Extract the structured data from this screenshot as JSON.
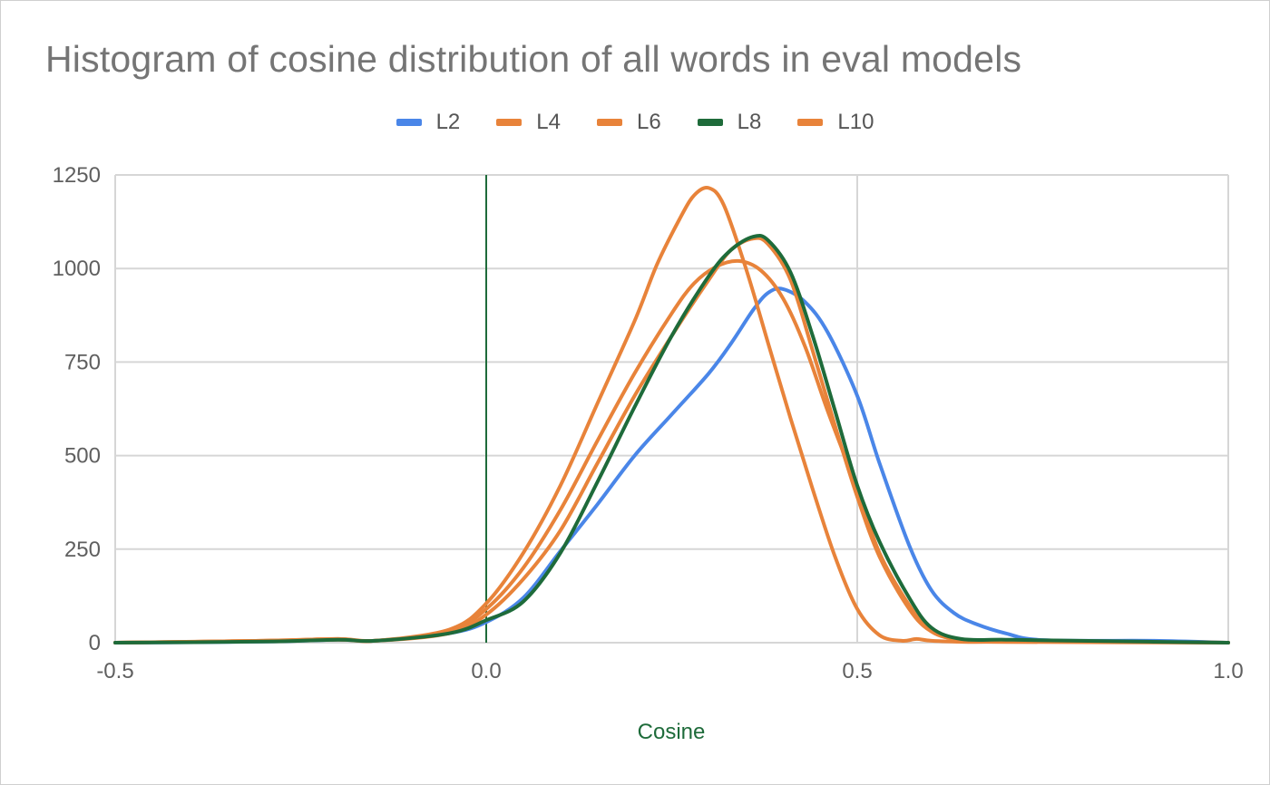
{
  "chart_data": {
    "type": "line",
    "title": "Histogram of cosine distribution of all words in eval models",
    "xlabel": "Cosine",
    "ylabel": "",
    "xlim": [
      -0.5,
      1.0
    ],
    "ylim": [
      0,
      1250
    ],
    "x_ticks": [
      -0.5,
      0.0,
      0.5,
      1.0
    ],
    "x_tick_labels": [
      "-0.5",
      "0.0",
      "0.5",
      "1.0"
    ],
    "y_ticks": [
      0,
      250,
      500,
      750,
      1000,
      1250
    ],
    "y_tick_labels": [
      "0",
      "250",
      "500",
      "750",
      "1000",
      "1250"
    ],
    "legend_position": "top-center",
    "grid": true,
    "series": [
      {
        "name": "L2",
        "color": "#4a86e8",
        "points": [
          [
            -0.5,
            0
          ],
          [
            -0.3,
            3
          ],
          [
            -0.2,
            8
          ],
          [
            -0.15,
            5
          ],
          [
            -0.05,
            25
          ],
          [
            0.0,
            55
          ],
          [
            0.05,
            120
          ],
          [
            0.1,
            245
          ],
          [
            0.15,
            370
          ],
          [
            0.2,
            500
          ],
          [
            0.25,
            610
          ],
          [
            0.3,
            720
          ],
          [
            0.33,
            800
          ],
          [
            0.36,
            890
          ],
          [
            0.38,
            935
          ],
          [
            0.4,
            945
          ],
          [
            0.43,
            910
          ],
          [
            0.46,
            830
          ],
          [
            0.5,
            660
          ],
          [
            0.53,
            480
          ],
          [
            0.57,
            260
          ],
          [
            0.6,
            140
          ],
          [
            0.63,
            80
          ],
          [
            0.66,
            50
          ],
          [
            0.7,
            25
          ],
          [
            0.75,
            7
          ],
          [
            0.9,
            5
          ],
          [
            1.0,
            0
          ]
        ]
      },
      {
        "name": "L4",
        "color": "#e8833a",
        "points": [
          [
            -0.5,
            0
          ],
          [
            -0.3,
            5
          ],
          [
            -0.2,
            10
          ],
          [
            -0.15,
            5
          ],
          [
            -0.05,
            25
          ],
          [
            0.0,
            75
          ],
          [
            0.05,
            170
          ],
          [
            0.1,
            300
          ],
          [
            0.15,
            480
          ],
          [
            0.2,
            660
          ],
          [
            0.25,
            820
          ],
          [
            0.3,
            970
          ],
          [
            0.33,
            1050
          ],
          [
            0.36,
            1080
          ],
          [
            0.38,
            1065
          ],
          [
            0.41,
            970
          ],
          [
            0.44,
            780
          ],
          [
            0.47,
            580
          ],
          [
            0.5,
            390
          ],
          [
            0.53,
            230
          ],
          [
            0.57,
            90
          ],
          [
            0.6,
            30
          ],
          [
            0.64,
            8
          ],
          [
            0.7,
            5
          ],
          [
            1.0,
            0
          ]
        ]
      },
      {
        "name": "L6",
        "color": "#e8833a",
        "points": [
          [
            -0.5,
            0
          ],
          [
            -0.3,
            5
          ],
          [
            -0.2,
            8
          ],
          [
            -0.15,
            5
          ],
          [
            -0.05,
            30
          ],
          [
            0.0,
            90
          ],
          [
            0.05,
            200
          ],
          [
            0.1,
            355
          ],
          [
            0.15,
            540
          ],
          [
            0.2,
            720
          ],
          [
            0.25,
            880
          ],
          [
            0.28,
            960
          ],
          [
            0.31,
            1005
          ],
          [
            0.34,
            1020
          ],
          [
            0.37,
            995
          ],
          [
            0.4,
            920
          ],
          [
            0.43,
            790
          ],
          [
            0.46,
            620
          ],
          [
            0.5,
            410
          ],
          [
            0.53,
            240
          ],
          [
            0.57,
            100
          ],
          [
            0.6,
            30
          ],
          [
            0.64,
            8
          ],
          [
            0.7,
            5
          ],
          [
            1.0,
            0
          ]
        ]
      },
      {
        "name": "L8",
        "color": "#1e6b3a",
        "points": [
          [
            -0.5,
            0
          ],
          [
            -0.3,
            3
          ],
          [
            -0.2,
            8
          ],
          [
            -0.15,
            5
          ],
          [
            -0.05,
            25
          ],
          [
            0.0,
            60
          ],
          [
            0.05,
            110
          ],
          [
            0.1,
            240
          ],
          [
            0.15,
            430
          ],
          [
            0.2,
            630
          ],
          [
            0.25,
            820
          ],
          [
            0.3,
            980
          ],
          [
            0.33,
            1050
          ],
          [
            0.36,
            1085
          ],
          [
            0.38,
            1075
          ],
          [
            0.41,
            990
          ],
          [
            0.44,
            820
          ],
          [
            0.47,
            620
          ],
          [
            0.5,
            420
          ],
          [
            0.53,
            270
          ],
          [
            0.57,
            120
          ],
          [
            0.6,
            40
          ],
          [
            0.64,
            10
          ],
          [
            0.7,
            8
          ],
          [
            0.8,
            5
          ],
          [
            1.0,
            0
          ]
        ]
      },
      {
        "name": "L10",
        "color": "#e8833a",
        "points": [
          [
            -0.5,
            0
          ],
          [
            -0.3,
            5
          ],
          [
            -0.2,
            10
          ],
          [
            -0.15,
            5
          ],
          [
            -0.05,
            35
          ],
          [
            0.0,
            105
          ],
          [
            0.05,
            240
          ],
          [
            0.1,
            420
          ],
          [
            0.15,
            640
          ],
          [
            0.2,
            860
          ],
          [
            0.23,
            1010
          ],
          [
            0.26,
            1130
          ],
          [
            0.28,
            1195
          ],
          [
            0.3,
            1215
          ],
          [
            0.32,
            1170
          ],
          [
            0.35,
            1000
          ],
          [
            0.38,
            800
          ],
          [
            0.41,
            600
          ],
          [
            0.44,
            410
          ],
          [
            0.47,
            230
          ],
          [
            0.5,
            90
          ],
          [
            0.53,
            20
          ],
          [
            0.56,
            5
          ],
          [
            0.58,
            10
          ],
          [
            0.6,
            5
          ],
          [
            0.65,
            2
          ],
          [
            0.7,
            2
          ],
          [
            1.0,
            0
          ]
        ]
      }
    ]
  }
}
